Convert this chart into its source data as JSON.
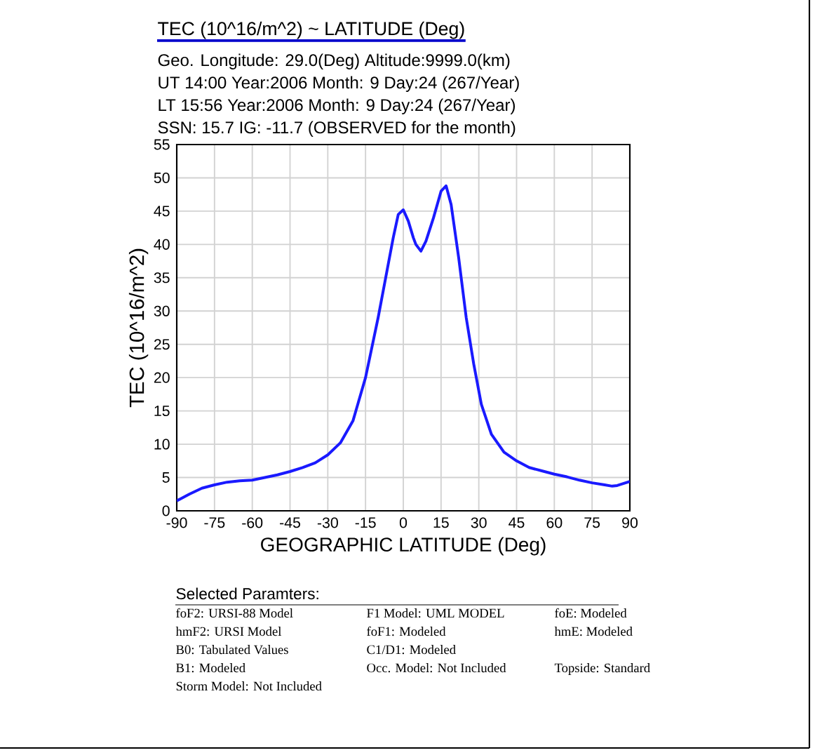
{
  "chart_data": {
    "type": "line",
    "title": "TEC (10^16/m^2)  ~  LATITUDE (Deg)",
    "xlabel": "GEOGRAPHIC LATITUDE (Deg)",
    "ylabel": "TEC (10^16/m^2)",
    "annotations": [
      "Geo. Longitude:  29.0(Deg)  Altitude:9999.0(km)",
      "UT 14:00  Year:2006  Month: 9  Day:24  (267/Year)",
      "LT 15:56  Year:2006  Month: 9  Day:24  (267/Year)",
      "SSN:  15.7    IG: -11.7 (OBSERVED for the month)",
      "Selected Paramters:",
      "foF2: URSI-88 Model",
      "F1 Model: UML MODEL",
      "foE: Modeled",
      "hmF2: URSI Model",
      "foF1: Modeled",
      "hmE: Modeled",
      "B0: Tabulated Values",
      "C1/D1: Modeled",
      "B1: Modeled",
      "Occ. Model: Not Included",
      "Topside: Standard",
      "Storm Model: Not Included"
    ],
    "x": [
      -90,
      -85,
      -80,
      -75,
      -70,
      -65,
      -60,
      -55,
      -50,
      -45,
      -40,
      -35,
      -30,
      -25,
      -20,
      -15,
      -10,
      -7,
      -4,
      -2,
      0,
      2,
      4,
      5,
      7,
      9,
      12,
      15,
      17,
      19,
      22,
      25,
      28,
      31,
      35,
      40,
      45,
      50,
      55,
      60,
      65,
      70,
      75,
      80,
      83,
      85,
      90
    ],
    "series": [
      {
        "color": "#1a1aff",
        "values": [
          1.5,
          2.5,
          3.4,
          3.9,
          4.3,
          4.5,
          4.6,
          5.0,
          5.4,
          5.9,
          6.5,
          7.2,
          8.4,
          10.2,
          13.5,
          20,
          29,
          35,
          41,
          44.5,
          45.2,
          43.5,
          41,
          40,
          39,
          40.5,
          44,
          48,
          48.8,
          46,
          38,
          29,
          22,
          16,
          11.5,
          8.8,
          7.5,
          6.5,
          6.0,
          5.5,
          5.1,
          4.6,
          4.2,
          3.9,
          3.7,
          3.8,
          4.4
        ]
      }
    ],
    "xlim": [
      -90,
      90
    ],
    "ylim": [
      0,
      55
    ],
    "xticks": [
      -90,
      -75,
      -60,
      -45,
      -30,
      -15,
      0,
      15,
      30,
      45,
      60,
      75,
      90
    ],
    "yticks": [
      0,
      5,
      10,
      15,
      20,
      25,
      30,
      35,
      40,
      45,
      50,
      55
    ],
    "grid": true,
    "marker": "none",
    "line_style": "solid"
  }
}
